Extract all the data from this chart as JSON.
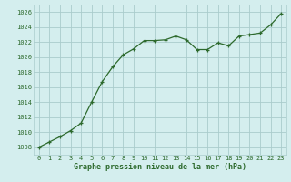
{
  "x": [
    0,
    1,
    2,
    3,
    4,
    5,
    6,
    7,
    8,
    9,
    10,
    11,
    12,
    13,
    14,
    15,
    16,
    17,
    18,
    19,
    20,
    21,
    22,
    23
  ],
  "y": [
    1008.0,
    1008.7,
    1009.4,
    1010.2,
    1011.2,
    1014.0,
    1016.7,
    1018.7,
    1020.3,
    1021.1,
    1022.2,
    1022.2,
    1022.3,
    1022.8,
    1022.3,
    1021.0,
    1021.0,
    1021.9,
    1021.5,
    1022.8,
    1023.0,
    1023.2,
    1024.3,
    1025.8
  ],
  "line_color": "#2d6a2d",
  "marker_color": "#2d6a2d",
  "bg_color": "#d4eeee",
  "grid_color": "#aacccc",
  "xlabel": "Graphe pression niveau de la mer (hPa)",
  "ylim_min": 1007,
  "ylim_max": 1027,
  "ytick_step": 2,
  "xtick_labels": [
    "0",
    "1",
    "2",
    "3",
    "4",
    "5",
    "6",
    "7",
    "8",
    "9",
    "10",
    "11",
    "12",
    "13",
    "14",
    "15",
    "16",
    "17",
    "18",
    "19",
    "20",
    "21",
    "22",
    "23"
  ]
}
